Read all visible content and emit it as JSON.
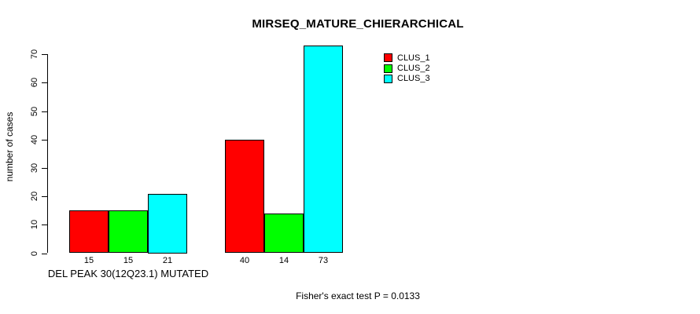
{
  "figure": {
    "title": "MIRSEQ_MATURE_CHIERARCHICAL",
    "footer": "Fisher's exact test P = 0.0133"
  },
  "chart_data": {
    "type": "bar",
    "title": "MIRSEQ_MATURE_CHIERARCHICAL",
    "xlabel": "",
    "ylabel": "number of cases",
    "ylim": [
      0,
      73
    ],
    "yticks": [
      0,
      10,
      20,
      30,
      40,
      50,
      60,
      70
    ],
    "grid": false,
    "bar_value_labels_shown": true,
    "legend_position": "top-right-inside",
    "categories": [
      "DEL PEAK 30(12Q23.1) MUTATED",
      ""
    ],
    "series": [
      {
        "name": "CLUS_1",
        "color": "#ff0000",
        "values": [
          15,
          40
        ]
      },
      {
        "name": "CLUS_2",
        "color": "#00ff00",
        "values": [
          15,
          14
        ]
      },
      {
        "name": "CLUS_3",
        "color": "#00ffff",
        "values": [
          21,
          73
        ]
      }
    ],
    "annotation": "Fisher's exact test P = 0.0133",
    "colors": {
      "axis": "#000000",
      "text": "#000000",
      "background": "#ffffff"
    }
  }
}
